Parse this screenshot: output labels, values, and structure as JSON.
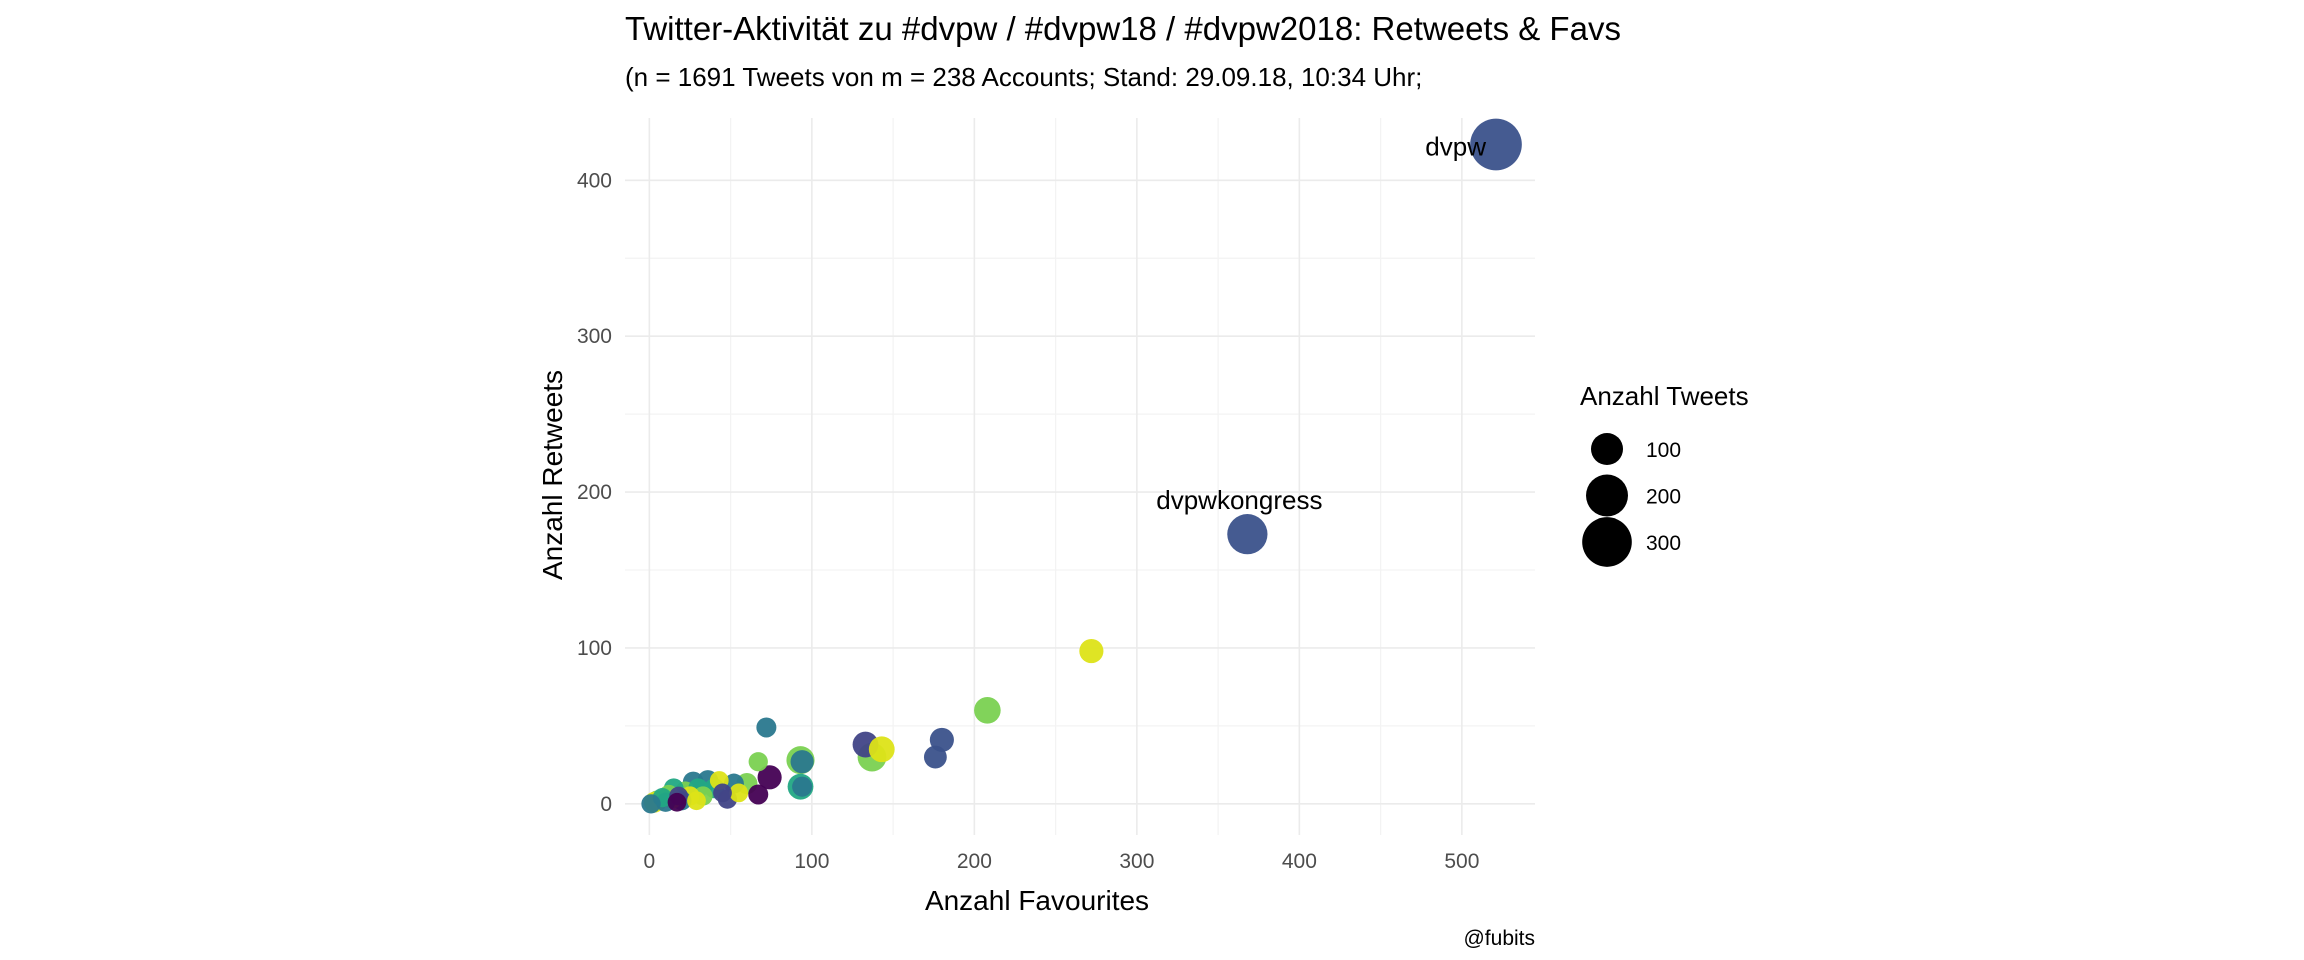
{
  "chart_data": {
    "type": "scatter",
    "title": "Twitter-Aktivität zu #dvpw / #dvpw18 / #dvpw2018: Retweets & Favs",
    "subtitle": "(n = 1691 Tweets von m = 238 Accounts; Stand: 29.09.18, 10:34 Uhr;",
    "xlabel": "Anzahl Favourites",
    "ylabel": "Anzahl Retweets",
    "caption": "@fubits",
    "xlim": [
      -15,
      545
    ],
    "ylim": [
      -20,
      440
    ],
    "x_ticks": [
      0,
      100,
      200,
      300,
      400,
      500
    ],
    "y_ticks": [
      0,
      100,
      200,
      300,
      400
    ],
    "grid": true,
    "legend": {
      "title": "Anzahl Tweets",
      "placement": "right",
      "entries": [
        {
          "label": "100",
          "size": 100
        },
        {
          "label": "200",
          "size": 200
        },
        {
          "label": "300",
          "size": 300
        }
      ]
    },
    "colors": {
      "dark_purple": "#440154",
      "indigo": "#3b3f8e",
      "blue": "#355f8d",
      "teal": "#21908d",
      "green": "#5ec962",
      "yellow": "#d8e219"
    },
    "points": [
      {
        "x": 521,
        "y": 423,
        "tweets": 330,
        "color": "#3b528b",
        "label": "dvpw"
      },
      {
        "x": 368,
        "y": 173,
        "tweets": 180,
        "color": "#3b528b",
        "label": "dvpwkongress"
      },
      {
        "x": 272,
        "y": 98,
        "tweets": 45,
        "color": "#dde318"
      },
      {
        "x": 208,
        "y": 60,
        "tweets": 60,
        "color": "#7ad151"
      },
      {
        "x": 180,
        "y": 41,
        "tweets": 45,
        "color": "#3b528b"
      },
      {
        "x": 176,
        "y": 30,
        "tweets": 38,
        "color": "#3b528b"
      },
      {
        "x": 133,
        "y": 38,
        "tweets": 55,
        "color": "#414487"
      },
      {
        "x": 143,
        "y": 35,
        "tweets": 55,
        "color": "#dde318"
      },
      {
        "x": 137,
        "y": 30,
        "tweets": 75,
        "color": "#7ad151"
      },
      {
        "x": 72,
        "y": 49,
        "tweets": 25,
        "color": "#2a788e"
      },
      {
        "x": 93,
        "y": 28,
        "tweets": 70,
        "color": "#7ad151"
      },
      {
        "x": 94,
        "y": 27,
        "tweets": 40,
        "color": "#2a788e"
      },
      {
        "x": 93,
        "y": 11,
        "tweets": 55,
        "color": "#22a884"
      },
      {
        "x": 94,
        "y": 11,
        "tweets": 25,
        "color": "#2a788e"
      },
      {
        "x": 67,
        "y": 27,
        "tweets": 22,
        "color": "#7ad151"
      },
      {
        "x": 74,
        "y": 17,
        "tweets": 45,
        "color": "#440154"
      },
      {
        "x": 67,
        "y": 6,
        "tweets": 25,
        "color": "#440154"
      },
      {
        "x": 60,
        "y": 13,
        "tweets": 30,
        "color": "#7ad151"
      },
      {
        "x": 52,
        "y": 13,
        "tweets": 25,
        "color": "#2a788e"
      },
      {
        "x": 48,
        "y": 3,
        "tweets": 22,
        "color": "#414487"
      },
      {
        "x": 43,
        "y": 15,
        "tweets": 20,
        "color": "#dde318"
      },
      {
        "x": 40,
        "y": 10,
        "tweets": 25,
        "color": "#22a884"
      },
      {
        "x": 36,
        "y": 15,
        "tweets": 28,
        "color": "#2a788e"
      },
      {
        "x": 33,
        "y": 5,
        "tweets": 22,
        "color": "#7ad151"
      },
      {
        "x": 30,
        "y": 10,
        "tweets": 24,
        "color": "#22a884"
      },
      {
        "x": 27,
        "y": 14,
        "tweets": 28,
        "color": "#2a788e"
      },
      {
        "x": 25,
        "y": 5,
        "tweets": 22,
        "color": "#dde318"
      },
      {
        "x": 22,
        "y": 8,
        "tweets": 25,
        "color": "#7ad151"
      },
      {
        "x": 20,
        "y": 2,
        "tweets": 22,
        "color": "#2a788e"
      },
      {
        "x": 18,
        "y": 5,
        "tweets": 20,
        "color": "#414487"
      },
      {
        "x": 15,
        "y": 10,
        "tweets": 24,
        "color": "#22a884"
      },
      {
        "x": 14,
        "y": 3,
        "tweets": 22,
        "color": "#dde318"
      },
      {
        "x": 12,
        "y": 6,
        "tweets": 22,
        "color": "#7ad151"
      },
      {
        "x": 10,
        "y": 1,
        "tweets": 22,
        "color": "#2a788e"
      },
      {
        "x": 8,
        "y": 4,
        "tweets": 22,
        "color": "#22a884"
      },
      {
        "x": 5,
        "y": 2,
        "tweets": 28,
        "color": "#7ad151"
      },
      {
        "x": 3,
        "y": 1,
        "tweets": 28,
        "color": "#dde318"
      },
      {
        "x": 1,
        "y": 0,
        "tweets": 22,
        "color": "#2a788e"
      },
      {
        "x": 55,
        "y": 7,
        "tweets": 20,
        "color": "#dde318"
      },
      {
        "x": 45,
        "y": 7,
        "tweets": 20,
        "color": "#414487"
      },
      {
        "x": 29,
        "y": 2,
        "tweets": 20,
        "color": "#dde318"
      },
      {
        "x": 17,
        "y": 1,
        "tweets": 20,
        "color": "#440154"
      }
    ]
  }
}
